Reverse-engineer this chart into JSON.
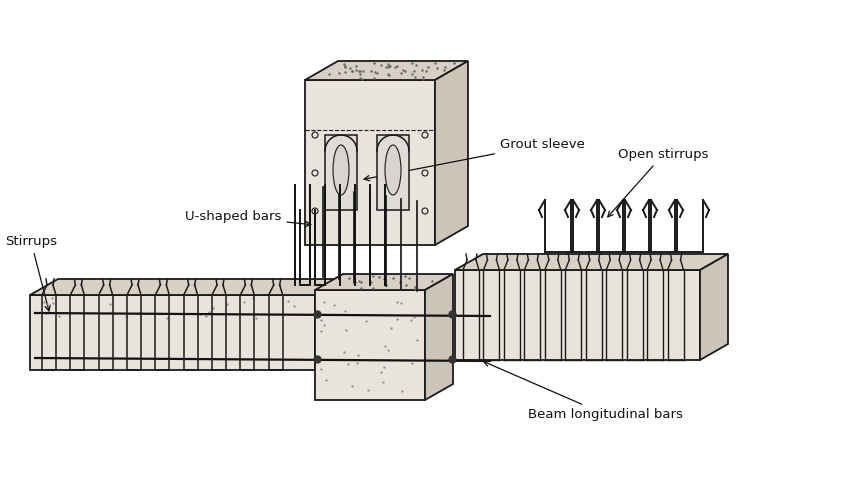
{
  "background_color": "#ffffff",
  "line_color": "#1a1a1a",
  "concrete_front": "#e8e4dc",
  "concrete_top": "#d8d0c4",
  "concrete_side": "#ccc4b8",
  "concrete_dark_front": "#d4cec4",
  "concrete_dark_top": "#c4beb4",
  "concrete_dark_side": "#b8b2a8",
  "labels": {
    "stirrups": "Stirrups",
    "u_shaped": "U-shaped bars",
    "grout_sleeve": "Grout sleeve",
    "open_stirrups": "Open stirrups",
    "beam_long": "Beam longitudinal bars"
  },
  "figsize": [
    8.5,
    4.79
  ]
}
